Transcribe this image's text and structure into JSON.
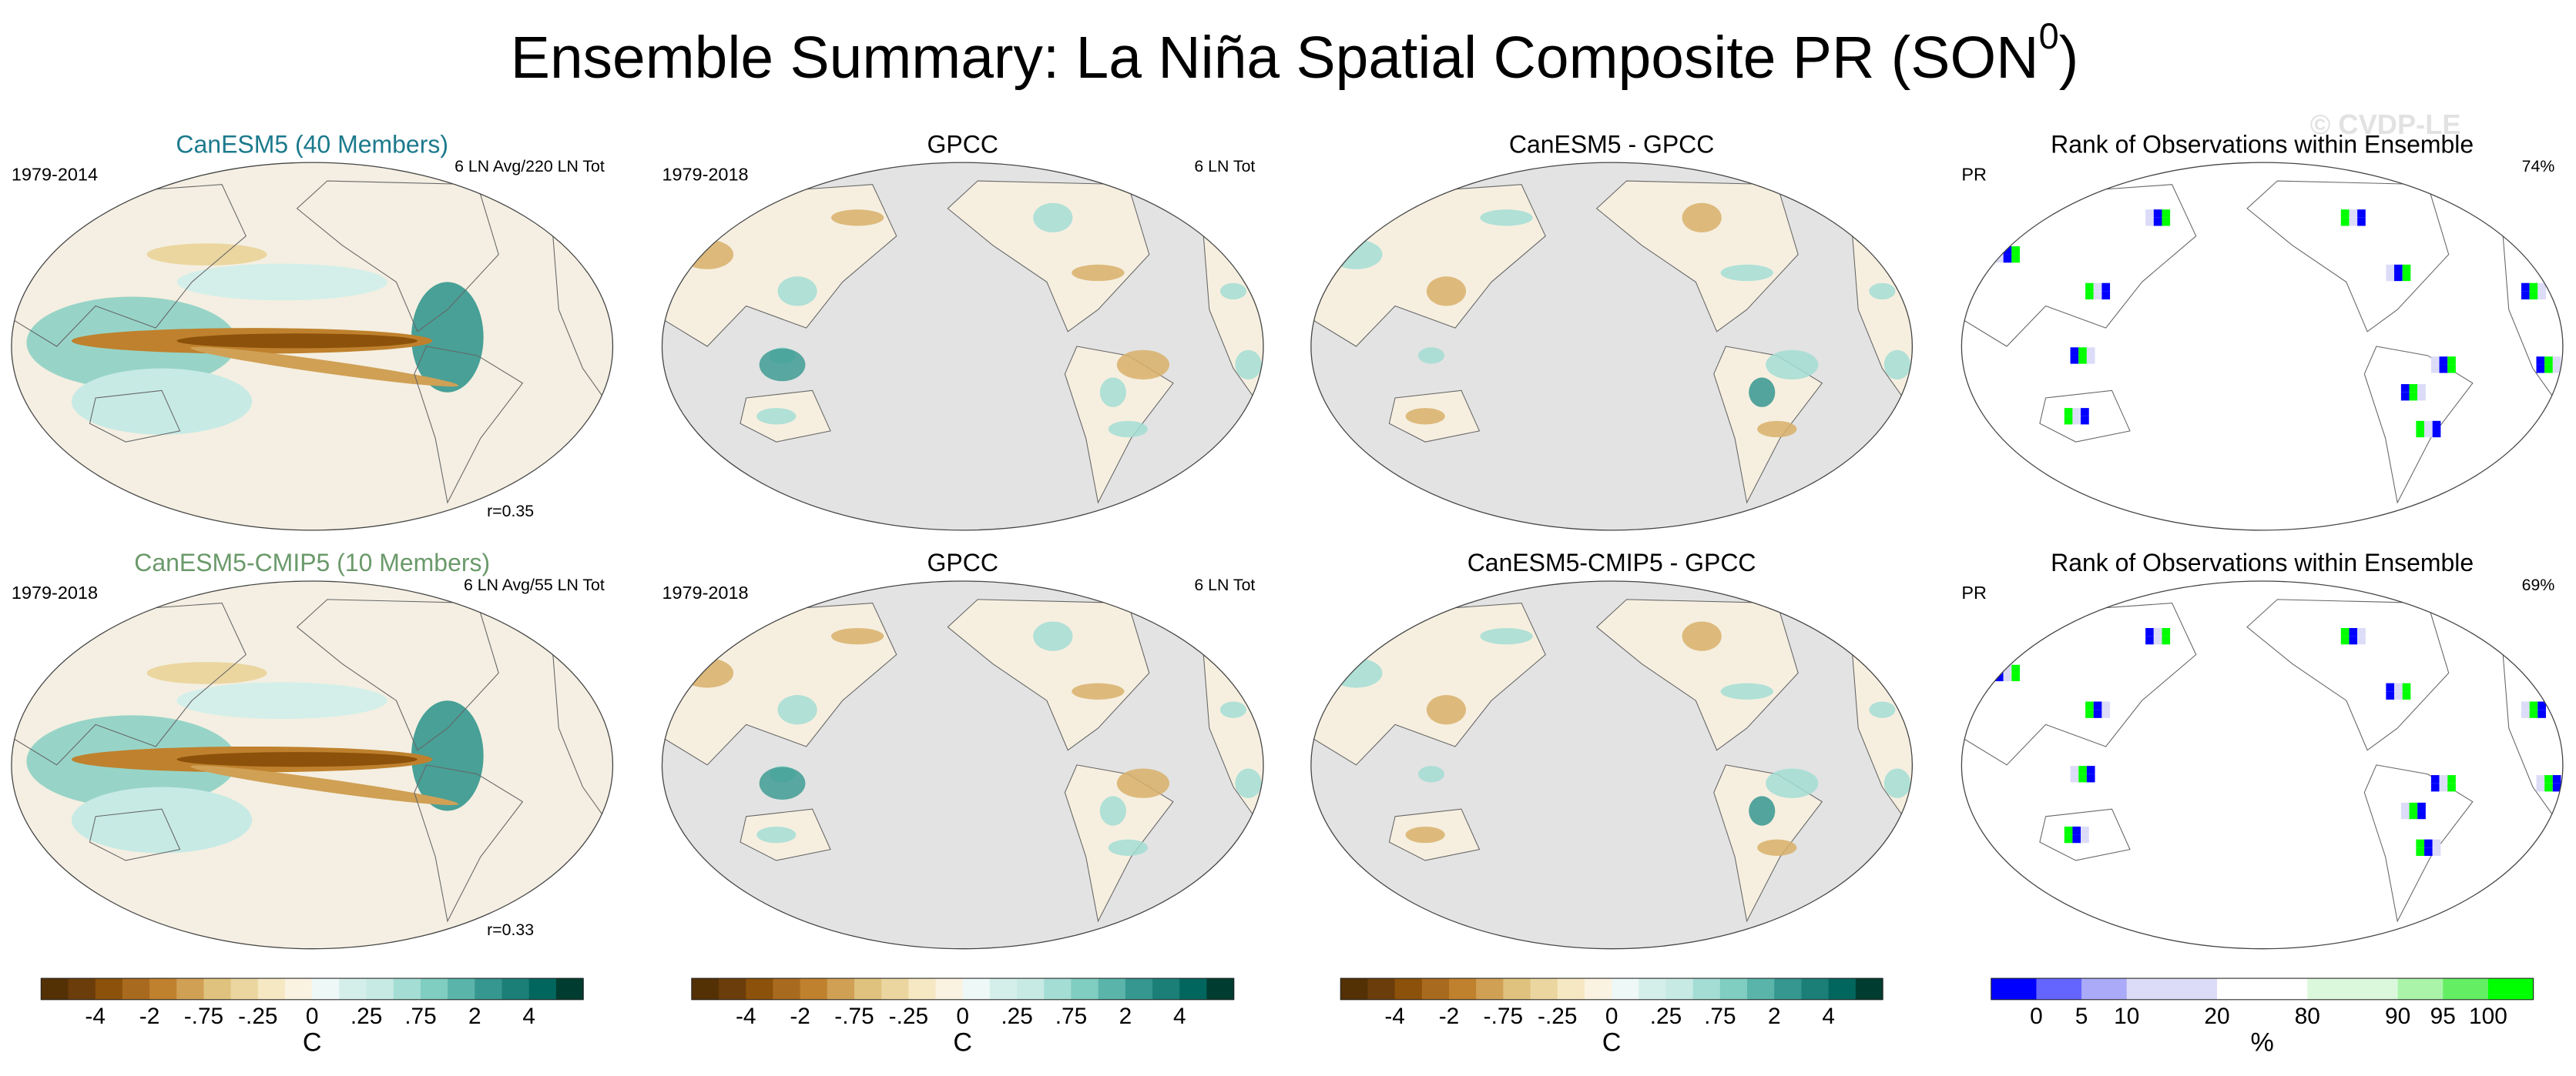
{
  "title": {
    "text": "Ensemble Summary: La Niña Spatial Composite PR (SON",
    "superscript": "0",
    "end": ")"
  },
  "watermark": "© CVDP-LE",
  "panels": [
    {
      "title": "CanESM5 (40 Members)",
      "title_color": "#1c7a8c",
      "left": "1979-2014",
      "right": "6 LN Avg/220 LN Tot",
      "note": "r=0.35"
    },
    {
      "title": "GPCC",
      "left": "1979-2018",
      "right": "6 LN Tot"
    },
    {
      "title": "CanESM5 - GPCC"
    },
    {
      "title": "Rank of Observations within Ensemble",
      "left": "PR",
      "right": "74%"
    },
    {
      "title": "CanESM5-CMIP5 (10 Members)",
      "title_color": "#6b9a6b",
      "left": "1979-2018",
      "right": "6 LN Avg/55 LN Tot",
      "note": "r=0.33"
    },
    {
      "title": "GPCC",
      "left": "1979-2018",
      "right": "6 LN Tot"
    },
    {
      "title": "CanESM5-CMIP5 - GPCC"
    },
    {
      "title": "Rank of Observations within Ensemble",
      "left": "PR",
      "right": "69%"
    }
  ],
  "colorbars": [
    {
      "colors": [
        "#543005",
        "#6b3d0b",
        "#8c510a",
        "#a86a1e",
        "#bf812d",
        "#d0a055",
        "#dfc27d",
        "#ebd6a0",
        "#f6e8c3",
        "#fbf3e2",
        "#eef8f6",
        "#d4efea",
        "#c7eae5",
        "#a3ddd3",
        "#80cdc1",
        "#5ab4a9",
        "#35978f",
        "#1c7f77",
        "#01665e",
        "#003c30"
      ],
      "labels": [
        "-4",
        "-2",
        "-.75",
        "-.25",
        "0",
        ".25",
        ".75",
        "2",
        "4"
      ],
      "unit": "C"
    },
    {
      "colors": [
        "#543005",
        "#6b3d0b",
        "#8c510a",
        "#a86a1e",
        "#bf812d",
        "#d0a055",
        "#dfc27d",
        "#ebd6a0",
        "#f6e8c3",
        "#fbf3e2",
        "#eef8f6",
        "#d4efea",
        "#c7eae5",
        "#a3ddd3",
        "#80cdc1",
        "#5ab4a9",
        "#35978f",
        "#1c7f77",
        "#01665e",
        "#003c30"
      ],
      "labels": [
        "-4",
        "-2",
        "-.75",
        "-.25",
        "0",
        ".25",
        ".75",
        "2",
        "4"
      ],
      "unit": "C"
    },
    {
      "colors": [
        "#543005",
        "#6b3d0b",
        "#8c510a",
        "#a86a1e",
        "#bf812d",
        "#d0a055",
        "#dfc27d",
        "#ebd6a0",
        "#f6e8c3",
        "#fbf3e2",
        "#eef8f6",
        "#d4efea",
        "#c7eae5",
        "#a3ddd3",
        "#80cdc1",
        "#5ab4a9",
        "#35978f",
        "#1c7f77",
        "#01665e",
        "#003c30"
      ],
      "labels": [
        "-4",
        "-2",
        "-.75",
        "-.25",
        "0",
        ".25",
        ".75",
        "2",
        "4"
      ],
      "unit": "C"
    },
    {
      "colors": [
        "#0000ff",
        "#6464ff",
        "#aaaaf8",
        "#dcdcf8",
        "#dcdcf8",
        "#ffffff",
        "#ffffff",
        "#dcf8dc",
        "#dcf8dc",
        "#aaf4aa",
        "#64ee64",
        "#00ff00"
      ],
      "labels": [
        "0",
        "5",
        "10",
        "20",
        "80",
        "90",
        "95",
        "100"
      ],
      "unit": "%"
    }
  ]
}
